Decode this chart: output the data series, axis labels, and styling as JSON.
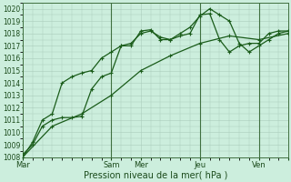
{
  "title": "Pression niveau de la mer( hPa )",
  "background_color": "#cceedd",
  "grid_color": "#aaccbb",
  "line_color": "#1a5c1a",
  "dark_line_color": "#2d6e2d",
  "xlim": [
    0,
    108
  ],
  "ylim": [
    1008,
    1020.5
  ],
  "yticks": [
    1008,
    1009,
    1010,
    1011,
    1012,
    1013,
    1014,
    1015,
    1016,
    1017,
    1018,
    1019,
    1020
  ],
  "xtick_positions": [
    0,
    36,
    48,
    72,
    96,
    108
  ],
  "xtick_labels": [
    "Mar",
    "Sam",
    "Mer",
    "Jeu",
    "Ven",
    ""
  ],
  "day_lines": [
    36,
    72,
    96
  ],
  "series1_x": [
    0,
    4,
    8,
    12,
    16,
    20,
    24,
    28,
    32,
    36,
    40,
    44,
    48,
    52,
    56,
    60,
    64,
    68,
    72,
    76,
    80,
    84,
    88,
    92,
    96,
    100,
    104,
    108
  ],
  "series1_y": [
    1008.2,
    1009.0,
    1010.5,
    1011.0,
    1011.2,
    1011.2,
    1011.3,
    1013.5,
    1014.5,
    1014.8,
    1017.0,
    1017.0,
    1018.2,
    1018.3,
    1017.5,
    1017.5,
    1017.8,
    1018.0,
    1019.5,
    1019.6,
    1017.5,
    1016.5,
    1017.0,
    1017.2,
    1017.2,
    1018.0,
    1018.2,
    1018.2
  ],
  "series2_x": [
    0,
    4,
    8,
    12,
    16,
    20,
    24,
    28,
    32,
    36,
    40,
    44,
    48,
    52,
    56,
    60,
    64,
    68,
    72,
    76,
    80,
    84,
    88,
    92,
    96,
    100,
    104,
    108
  ],
  "series2_y": [
    1008.0,
    1009.2,
    1011.0,
    1011.5,
    1014.0,
    1014.5,
    1014.8,
    1015.0,
    1016.0,
    1016.5,
    1017.0,
    1017.2,
    1018.0,
    1018.2,
    1017.7,
    1017.5,
    1018.0,
    1018.5,
    1019.4,
    1020.0,
    1019.5,
    1019.0,
    1017.2,
    1016.5,
    1017.0,
    1017.5,
    1018.0,
    1018.2
  ],
  "series3_x": [
    0,
    12,
    24,
    36,
    48,
    60,
    72,
    84,
    96,
    108
  ],
  "series3_y": [
    1008.0,
    1010.5,
    1011.5,
    1013.0,
    1015.0,
    1016.2,
    1017.2,
    1017.8,
    1017.5,
    1018.0
  ],
  "marker": "+",
  "marker_size": 3.5,
  "linewidth": 0.9
}
